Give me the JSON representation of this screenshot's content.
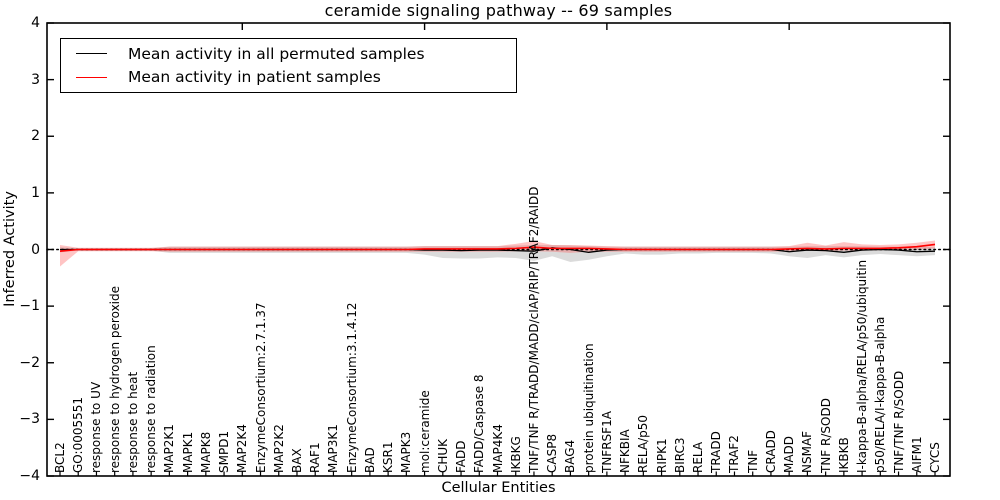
{
  "chart_data": {
    "type": "line",
    "title": "ceramide signaling pathway -- 69 samples",
    "xlabel": "Cellular Entities",
    "ylabel": "Inferred Activity",
    "ylim": [
      -4,
      4
    ],
    "yticks": [
      4,
      3,
      2,
      1,
      0,
      -1,
      -2,
      -3,
      -4
    ],
    "yticklabels": [
      "4",
      "3",
      "2",
      "1",
      "0",
      "−1",
      "−2",
      "−3",
      "−4"
    ],
    "grid": false,
    "legend_position": "upper left",
    "zero_line": {
      "style": "dotted",
      "color": "#000000",
      "y": 0
    },
    "categories": [
      "BCL2",
      "GO:0005551",
      "response to UV",
      "response to hydrogen peroxide",
      "response to heat",
      "response to radiation",
      "MAP2K1",
      "MAPK1",
      "MAPK8",
      "SMPD1",
      "MAP2K4",
      "EnzymeConsortium:2.7.1.37",
      "MAP2K2",
      "BAX",
      "RAF1",
      "MAP3K1",
      "EnzymeConsortium:3.1.4.12",
      "BAD",
      "KSR1",
      "MAPK3",
      "mol:ceramide",
      "CHUK",
      "FADD",
      "FADD/Caspase 8",
      "MAP4K4",
      "IKBKG",
      "TNF/TNF R/TRADD/MADD/cIAP/RIP/TRAF2/RAIDD",
      "CASP8",
      "BAG4",
      "protein ubiquitination",
      "TNFRSF1A",
      "NFKBIA",
      "RELA/p50",
      "RIPK1",
      "BIRC3",
      "RELA",
      "TRADD",
      "TRAF2",
      "TNF",
      "CRADD",
      "MADD",
      "NSMAF",
      "TNF R/SODD",
      "IKBKB",
      "I-kappa-B-alpha/RELA/p50/ubiquitin",
      "p50/RELA/I-kappa-B-alpha",
      "TNF/TNF R/SODD",
      "AIFM1",
      "CYCS"
    ],
    "series": [
      {
        "name": "Mean activity in all permuted samples",
        "color": "#000000",
        "band_color": "#999999",
        "band_opacity": 0.35,
        "values": [
          0,
          0,
          0,
          0,
          0,
          0,
          0,
          0,
          0,
          0,
          0,
          0,
          0,
          0,
          0,
          0,
          0,
          0,
          0,
          0,
          -0.01,
          -0.01,
          -0.02,
          -0.01,
          -0.01,
          -0.02,
          -0.03,
          0.03,
          0,
          -0.05,
          -0.01,
          0,
          0,
          0,
          0,
          0,
          0,
          0,
          0,
          0,
          -0.04,
          -0.01,
          -0.02,
          -0.05,
          -0.01,
          0,
          -0.01,
          -0.04,
          -0.03
        ],
        "band_upper": [
          0.04,
          0.02,
          0.02,
          0.02,
          0.02,
          0.02,
          0.05,
          0.05,
          0.05,
          0.05,
          0.05,
          0.05,
          0.05,
          0.05,
          0.05,
          0.05,
          0.05,
          0.05,
          0.05,
          0.05,
          0.06,
          0.06,
          0.06,
          0.06,
          0.06,
          0.07,
          0.08,
          0.08,
          0.07,
          0.06,
          0.05,
          0.05,
          0.05,
          0.05,
          0.05,
          0.05,
          0.05,
          0.05,
          0.05,
          0.05,
          0.05,
          0.06,
          0.06,
          0.06,
          0.06,
          0.05,
          0.05,
          0.05,
          0.04
        ],
        "band_lower": [
          -0.05,
          -0.02,
          -0.02,
          -0.02,
          -0.02,
          -0.02,
          -0.06,
          -0.06,
          -0.06,
          -0.06,
          -0.06,
          -0.06,
          -0.06,
          -0.06,
          -0.06,
          -0.06,
          -0.06,
          -0.06,
          -0.06,
          -0.06,
          -0.09,
          -0.15,
          -0.16,
          -0.16,
          -0.14,
          -0.15,
          -0.2,
          -0.12,
          -0.22,
          -0.18,
          -0.12,
          -0.07,
          -0.09,
          -0.09,
          -0.07,
          -0.07,
          -0.06,
          -0.06,
          -0.06,
          -0.07,
          -0.12,
          -0.15,
          -0.1,
          -0.14,
          -0.1,
          -0.08,
          -0.1,
          -0.12,
          -0.1
        ]
      },
      {
        "name": "Mean activity in patient samples",
        "color": "#ff0000",
        "band_color": "#ff5555",
        "band_opacity": 0.35,
        "values": [
          -0.03,
          0,
          0,
          0,
          0,
          0,
          0,
          0,
          0,
          0,
          0,
          0,
          0,
          0,
          0,
          0,
          0,
          0,
          0,
          0,
          0.01,
          0.01,
          0.01,
          0.01,
          0.01,
          0.02,
          0.04,
          0.02,
          0.02,
          0.02,
          0.01,
          0,
          0,
          0,
          0,
          0,
          0,
          0,
          0,
          0,
          0.01,
          0.02,
          0.01,
          0.02,
          0.02,
          0.02,
          0.03,
          0.05,
          0.09
        ],
        "band_upper": [
          0.08,
          0.03,
          0.03,
          0.03,
          0.03,
          0.03,
          0.05,
          0.05,
          0.05,
          0.05,
          0.05,
          0.05,
          0.05,
          0.05,
          0.05,
          0.05,
          0.05,
          0.05,
          0.05,
          0.05,
          0.06,
          0.06,
          0.06,
          0.06,
          0.06,
          0.1,
          0.15,
          0.08,
          0.08,
          0.07,
          0.06,
          0.05,
          0.05,
          0.05,
          0.05,
          0.05,
          0.05,
          0.05,
          0.05,
          0.05,
          0.06,
          0.12,
          0.07,
          0.13,
          0.09,
          0.08,
          0.09,
          0.12,
          0.16
        ],
        "band_lower": [
          -0.3,
          -0.03,
          -0.03,
          -0.03,
          -0.03,
          -0.03,
          -0.04,
          -0.04,
          -0.04,
          -0.04,
          -0.04,
          -0.04,
          -0.04,
          -0.04,
          -0.04,
          -0.04,
          -0.04,
          -0.04,
          -0.04,
          -0.04,
          -0.04,
          -0.04,
          -0.04,
          -0.04,
          -0.04,
          -0.03,
          -0.03,
          -0.04,
          -0.06,
          -0.04,
          -0.04,
          -0.04,
          -0.04,
          -0.04,
          -0.04,
          -0.04,
          -0.04,
          -0.04,
          -0.04,
          -0.04,
          -0.03,
          -0.02,
          -0.03,
          -0.02,
          -0.02,
          -0.01,
          0.0,
          0.0,
          0.02
        ]
      }
    ]
  }
}
